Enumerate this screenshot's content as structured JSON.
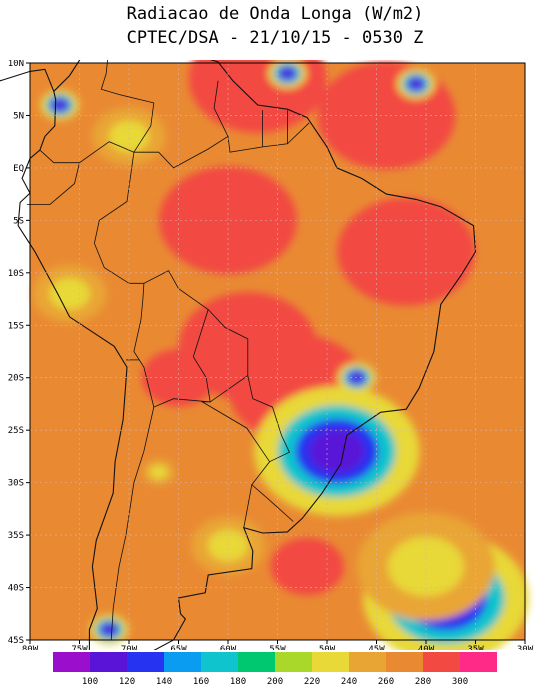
{
  "title": "Radiacao de Onda Longa (W/m2)",
  "subtitle": "CPTEC/DSA - 21/10/15 - 0530 Z",
  "map": {
    "lat_labels": [
      "10N",
      "5N",
      "EQ",
      "5S",
      "10S",
      "15S",
      "20S",
      "25S",
      "30S",
      "35S",
      "40S",
      "45S"
    ],
    "lon_labels": [
      "80W",
      "75W",
      "70W",
      "65W",
      "60W",
      "55W",
      "50W",
      "45W",
      "40W",
      "35W",
      "30W"
    ],
    "lat_range": [
      10,
      -45
    ],
    "lon_range": [
      -80,
      -30
    ],
    "grid": true,
    "background_color": "#e98a33",
    "warm_color": "#f24a43",
    "features": [
      {
        "kind": "warm",
        "lat": 8.5,
        "lon": -57,
        "size": "large"
      },
      {
        "kind": "warm",
        "lat": 5,
        "lon": -44,
        "size": "large"
      },
      {
        "kind": "warm",
        "lat": -5,
        "lon": -60,
        "size": "large"
      },
      {
        "kind": "warm",
        "lat": -8,
        "lon": -42,
        "size": "large"
      },
      {
        "kind": "warm",
        "lat": -17,
        "lon": -58,
        "size": "large"
      },
      {
        "kind": "warm",
        "lat": -21,
        "lon": -53,
        "size": "large"
      },
      {
        "kind": "warm",
        "lat": -20,
        "lon": -65,
        "size": "medium"
      },
      {
        "kind": "warm",
        "lat": -38,
        "lon": -52,
        "size": "medium"
      },
      {
        "kind": "cold",
        "lat": -27,
        "lon": -49,
        "size": "large"
      },
      {
        "kind": "cold",
        "lat": -20,
        "lon": -47,
        "size": "small"
      },
      {
        "kind": "cold",
        "lat": -41,
        "lon": -38,
        "size": "large"
      },
      {
        "kind": "cold",
        "lat": 8,
        "lon": -41,
        "size": "small"
      },
      {
        "kind": "cold",
        "lat": 9,
        "lon": -54,
        "size": "small"
      },
      {
        "kind": "cold",
        "lat": 6,
        "lon": -77,
        "size": "small"
      },
      {
        "kind": "cold",
        "lat": -44,
        "lon": -72,
        "size": "small"
      },
      {
        "kind": "mild",
        "lat": -29,
        "lon": -67,
        "size": "small"
      },
      {
        "kind": "mild",
        "lat": -36,
        "lon": -60,
        "size": "medium"
      },
      {
        "kind": "mild",
        "lat": -38,
        "lon": -40,
        "size": "large"
      },
      {
        "kind": "mild",
        "lat": -12,
        "lon": -76,
        "size": "medium"
      },
      {
        "kind": "mild",
        "lat": 3,
        "lon": -70,
        "size": "medium"
      }
    ]
  },
  "colorbar": {
    "colors": [
      "#9b0fcc",
      "#5a14d8",
      "#2633f0",
      "#0a9cf0",
      "#0fc4cc",
      "#00c870",
      "#a9d82a",
      "#e8d838",
      "#e9a534",
      "#e98a33",
      "#f24a43",
      "#ff2a88"
    ],
    "labels": [
      "100",
      "120",
      "140",
      "160",
      "180",
      "200",
      "220",
      "240",
      "260",
      "280",
      "300"
    ]
  }
}
